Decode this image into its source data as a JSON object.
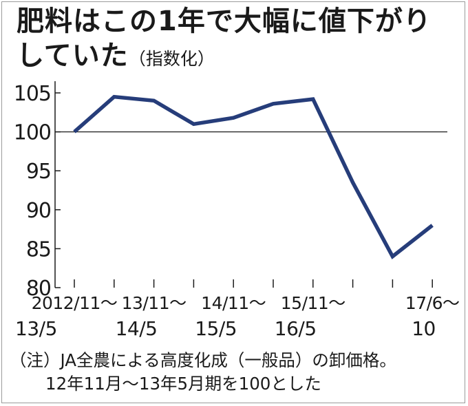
{
  "title": {
    "main": "肥料はこの1年で大幅に値下がりしていた",
    "sub": "（指数化）"
  },
  "chart_data": {
    "type": "line",
    "x": [
      "2012/11〜13/5",
      "",
      "13/11〜14/5",
      "",
      "14/11〜15/5",
      "",
      "15/11〜16/5",
      "",
      "",
      "17/6〜10"
    ],
    "x_tick_labels": [
      {
        "line1": "2012/11〜",
        "line2": "13/5"
      },
      {
        "line1": "",
        "line2": ""
      },
      {
        "line1": "13/11〜",
        "line2": "14/5"
      },
      {
        "line1": "",
        "line2": ""
      },
      {
        "line1": "14/11〜",
        "line2": "15/5"
      },
      {
        "line1": "",
        "line2": ""
      },
      {
        "line1": "15/11〜",
        "line2": "16/5"
      },
      {
        "line1": "",
        "line2": ""
      },
      {
        "line1": "",
        "line2": ""
      },
      {
        "line1": "17/6〜",
        "line2": "10"
      }
    ],
    "series": [
      {
        "values": [
          100,
          104.5,
          104,
          101,
          101.8,
          103.6,
          104.2,
          93.5,
          84,
          88
        ]
      }
    ],
    "yticks": [
      80,
      85,
      90,
      95,
      100,
      105
    ],
    "ylim": [
      80,
      107
    ],
    "reference_line": 100,
    "line_color": "#263d7a",
    "axis_color": "#1a1a1a",
    "xlabel": "",
    "ylabel": ""
  },
  "note": {
    "line1": "（注）JA全農による高度化成（一般品）の卸価格。",
    "line2": "12年11月〜13年5月期を100とした"
  }
}
